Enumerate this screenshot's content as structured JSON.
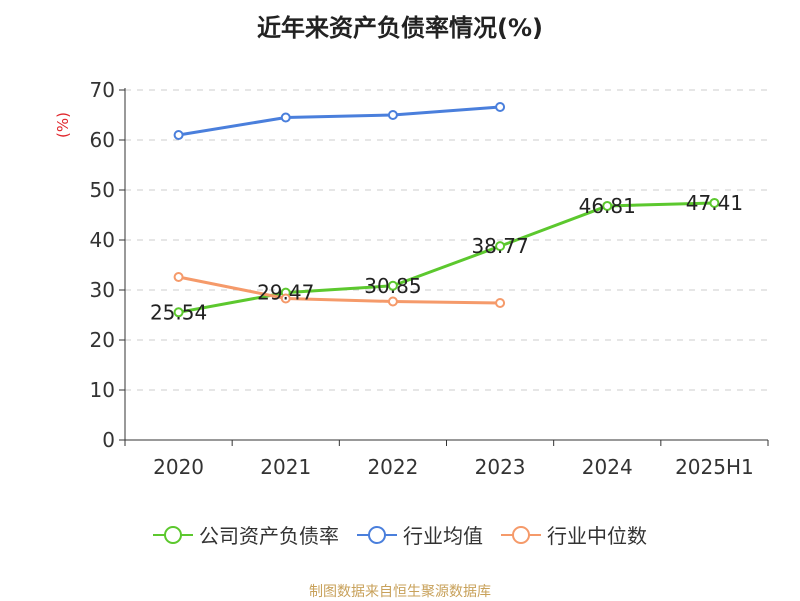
{
  "chart_data": {
    "type": "line",
    "title": "近年来资产负债率情况(%)",
    "ylabel": "(%)",
    "ylim": [
      0,
      70
    ],
    "yticks": [
      0,
      10,
      20,
      30,
      40,
      50,
      60,
      70
    ],
    "categories": [
      "2020",
      "2021",
      "2022",
      "2023",
      "2024",
      "2025H1"
    ],
    "grid": true,
    "legend_position": "bottom",
    "series": [
      {
        "name": "公司资产负债率",
        "color": "#5cc82e",
        "values": [
          25.54,
          29.47,
          30.85,
          38.77,
          46.81,
          47.41
        ],
        "labels": [
          "25.54",
          "29.47",
          "30.85",
          "38.77",
          "46.81",
          "47.41"
        ]
      },
      {
        "name": "行业均值",
        "color": "#4a7fdc",
        "values": [
          61.0,
          64.5,
          65.0,
          66.6,
          null,
          null
        ]
      },
      {
        "name": "行业中位数",
        "color": "#f59a6a",
        "values": [
          32.6,
          28.3,
          27.7,
          27.4,
          null,
          null
        ]
      }
    ]
  },
  "footer": {
    "source": "制图数据来自恒生聚源数据库"
  },
  "colors": {
    "title": "#222222",
    "axis": "#333333",
    "grid": "#cccccc",
    "ylabel": "#e0252b",
    "source": "#c8a15a"
  }
}
